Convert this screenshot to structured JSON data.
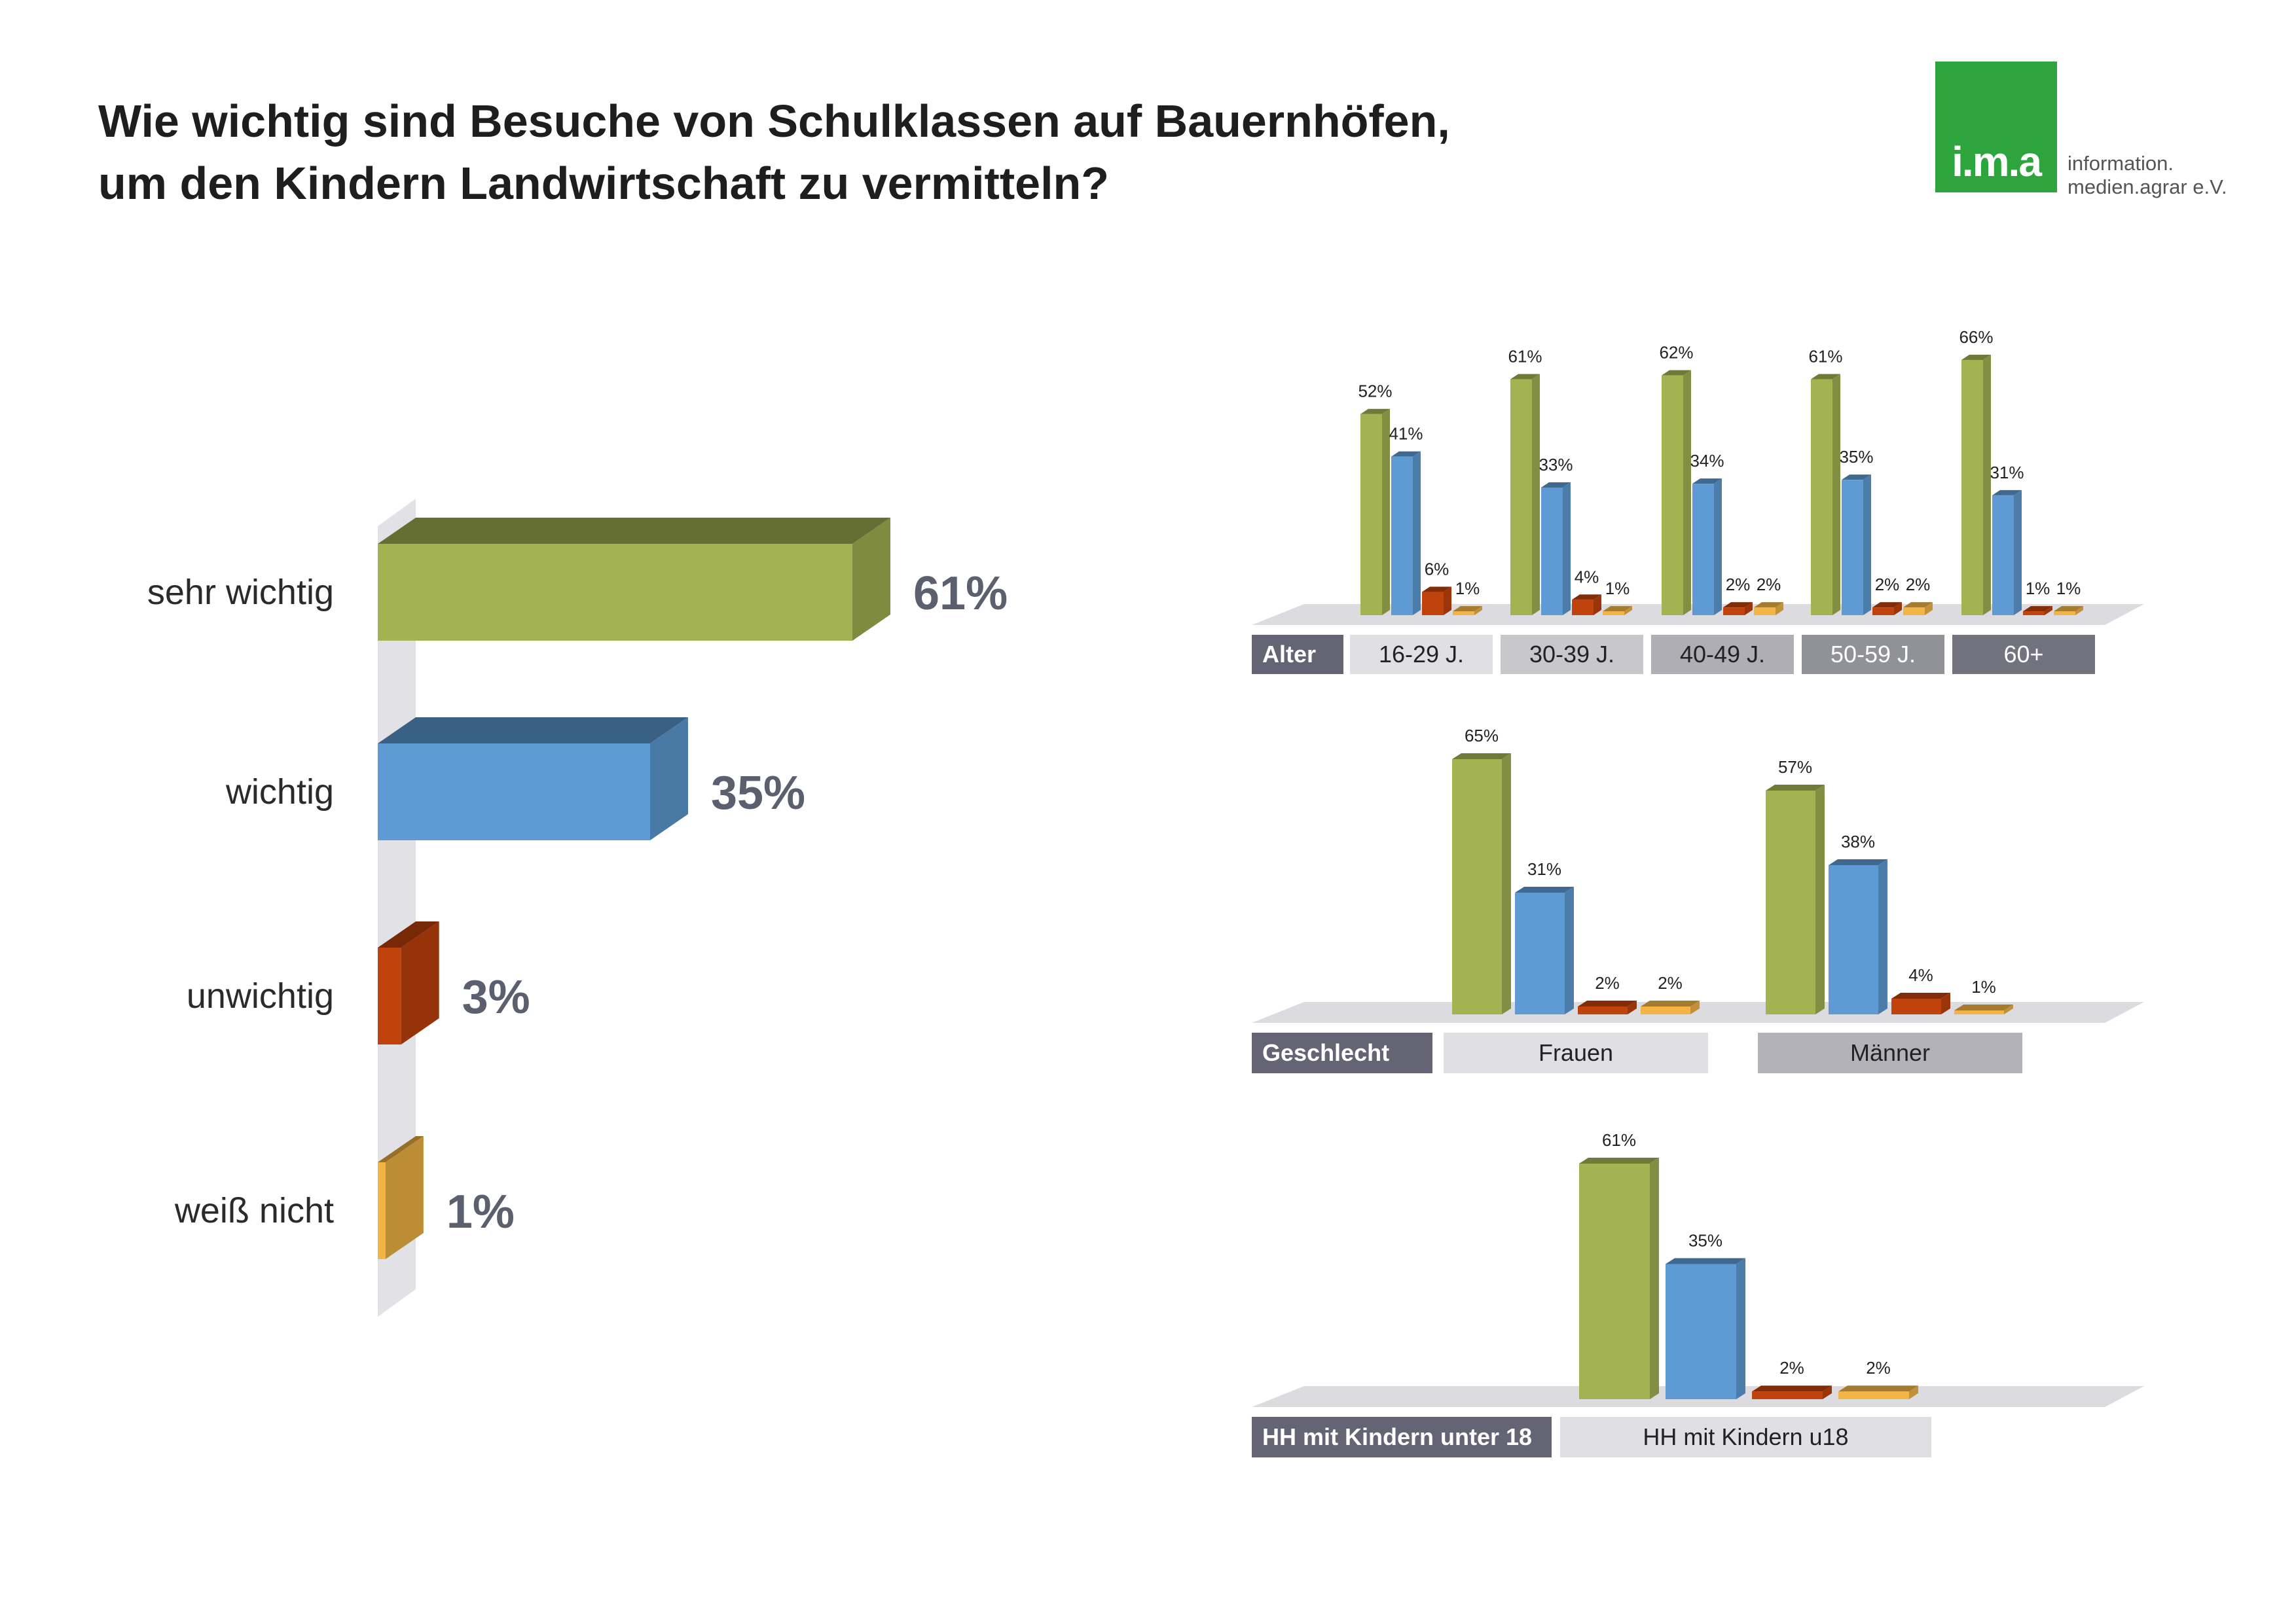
{
  "title": {
    "line1": "Wie wichtig sind Besuche von Schulklassen auf Bauernhöfen,",
    "line2": "um den Kindern Landwirtschaft zu vermitteln?"
  },
  "logo": {
    "mark": "i.m.a",
    "line1": "information.",
    "line2": "medien.agrar e.V."
  },
  "colors": {
    "sehr_wichtig": "#a3b352",
    "wichtig": "#5e9bd4",
    "unwichtig": "#c0420c",
    "weiss_nicht": "#f2b545",
    "value_text": "#5b5f6e"
  },
  "chart_data": [
    {
      "type": "bar",
      "orientation": "horizontal",
      "categories": [
        "sehr wichtig",
        "wichtig",
        "unwichtig",
        "weiß nicht"
      ],
      "values": [
        61,
        35,
        3,
        1
      ],
      "value_labels": [
        "61%",
        "35%",
        "3%",
        "1%"
      ],
      "xlim": [
        0,
        61
      ]
    },
    {
      "type": "bar",
      "group_label": "Alter",
      "categories": [
        "16-29 J.",
        "30-39 J.",
        "40-49 J.",
        "50-59 J.",
        "60+"
      ],
      "series": [
        {
          "values": [
            52,
            61,
            62,
            61,
            66
          ]
        },
        {
          "values": [
            41,
            33,
            34,
            35,
            31
          ]
        },
        {
          "values": [
            6,
            4,
            2,
            2,
            1
          ]
        },
        {
          "values": [
            1,
            1,
            2,
            2,
            1
          ]
        }
      ],
      "ylim": [
        0,
        66
      ]
    },
    {
      "type": "bar",
      "group_label": "Geschlecht",
      "categories": [
        "Frauen",
        "Männer"
      ],
      "series": [
        {
          "values": [
            65,
            57
          ]
        },
        {
          "values": [
            31,
            38
          ]
        },
        {
          "values": [
            2,
            4
          ]
        },
        {
          "values": [
            2,
            1
          ]
        }
      ],
      "ylim": [
        0,
        65
      ]
    },
    {
      "type": "bar",
      "group_label": "HH mit Kindern unter 18",
      "categories": [
        "HH mit Kindern u18"
      ],
      "series": [
        {
          "values": [
            61
          ]
        },
        {
          "values": [
            35
          ]
        },
        {
          "values": [
            2
          ]
        },
        {
          "values": [
            2
          ]
        }
      ],
      "ylim": [
        0,
        61
      ]
    }
  ]
}
